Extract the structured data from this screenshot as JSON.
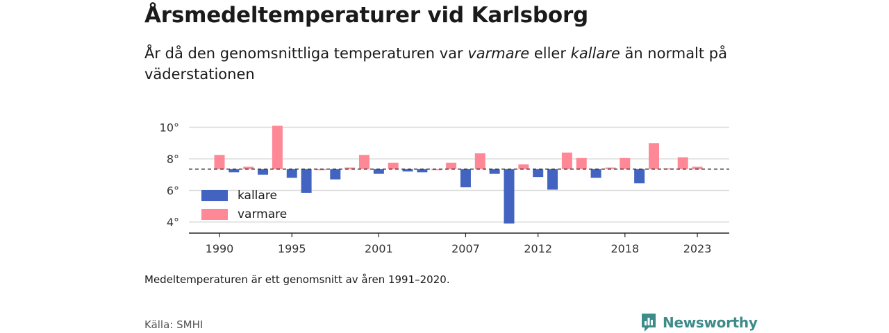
{
  "header": {
    "title": "Årsmedeltemperaturer vid Karlsborg",
    "subtitle_before": "År då den genomsnittliga temperaturen var ",
    "subtitle_em1": "varmare",
    "subtitle_mid": " eller ",
    "subtitle_em2": "kallare",
    "subtitle_after": " än normalt på väderstationen"
  },
  "footer": {
    "note": "Medeltemperaturen är ett genomsnitt av åren 1991–2020.",
    "source": "Källa: SMHI",
    "brand": "Newsworthy"
  },
  "colors": {
    "warmer": "#ff8896",
    "colder": "#4263c0",
    "brand": "#3d8c8a"
  },
  "chart_data": {
    "type": "bar",
    "baseline": 7.35,
    "ylim": [
      3.4,
      10.9
    ],
    "yticks": [
      {
        "value": 4,
        "label": "4°"
      },
      {
        "value": 6,
        "label": "6°"
      },
      {
        "value": 8,
        "label": "8°"
      },
      {
        "value": 10,
        "label": "10°"
      }
    ],
    "xticks": [
      {
        "year": 1990,
        "label": "1990"
      },
      {
        "year": 1995,
        "label": "1995"
      },
      {
        "year": 2001,
        "label": "2001"
      },
      {
        "year": 2007,
        "label": "2007"
      },
      {
        "year": 2012,
        "label": "2012"
      },
      {
        "year": 2018,
        "label": "2018"
      },
      {
        "year": 2023,
        "label": "2023"
      }
    ],
    "legend": {
      "position": "bottom-left",
      "items": [
        {
          "key": "colder",
          "label": "kallare"
        },
        {
          "key": "warmer",
          "label": "varmare"
        }
      ]
    },
    "x": [
      1990,
      1991,
      1992,
      1993,
      1994,
      1995,
      1996,
      1997,
      1998,
      1999,
      2000,
      2001,
      2002,
      2003,
      2004,
      2005,
      2006,
      2007,
      2008,
      2009,
      2010,
      2011,
      2012,
      2013,
      2014,
      2015,
      2016,
      2017,
      2018,
      2019,
      2020,
      2021,
      2022,
      2023
    ],
    "values": [
      8.25,
      7.15,
      7.5,
      7.0,
      10.1,
      6.8,
      5.85,
      7.35,
      6.7,
      7.45,
      8.25,
      7.05,
      7.75,
      7.2,
      7.15,
      7.35,
      7.75,
      6.2,
      8.35,
      7.05,
      3.9,
      7.65,
      6.85,
      6.05,
      8.4,
      8.05,
      6.8,
      7.45,
      8.05,
      6.45,
      9.0,
      7.4,
      8.1,
      7.5
    ]
  }
}
